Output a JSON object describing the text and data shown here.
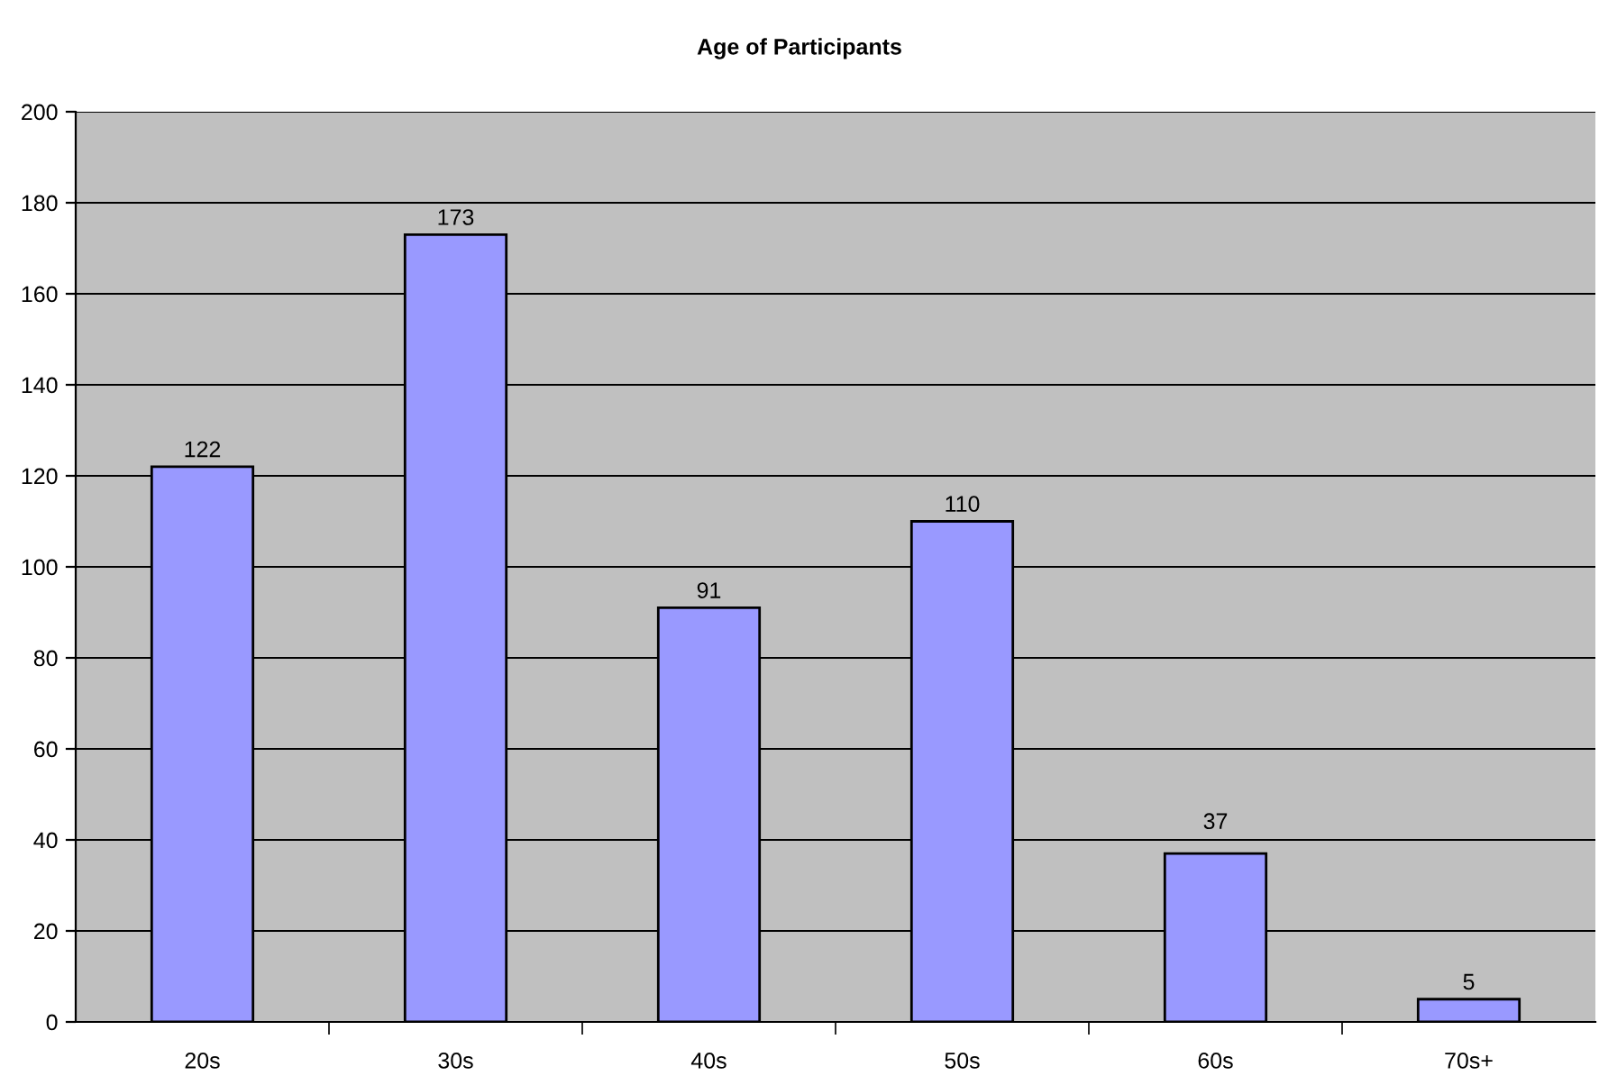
{
  "chart_data": {
    "type": "bar",
    "title": "Age of Participants",
    "categories": [
      "20s",
      "30s",
      "40s",
      "50s",
      "60s",
      "70s+"
    ],
    "values": [
      122,
      173,
      91,
      110,
      37,
      5
    ],
    "color": "#9999ff",
    "ylim": [
      0,
      200
    ],
    "yticks": [
      0,
      20,
      40,
      60,
      80,
      100,
      120,
      140,
      160,
      180,
      200
    ],
    "grid": "y",
    "data_labels": true,
    "legend": false
  }
}
